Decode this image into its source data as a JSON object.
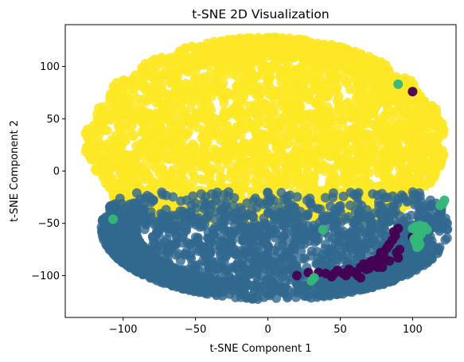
{
  "chart_data": {
    "type": "scatter",
    "title": "t-SNE 2D Visualization",
    "xlabel": "t-SNE Component 1",
    "ylabel": "t-SNE Component 2",
    "xlim": [
      -140,
      130
    ],
    "ylim": [
      -140,
      140
    ],
    "xticks": [
      -100,
      -50,
      0,
      50,
      100
    ],
    "yticks": [
      -100,
      -50,
      0,
      50,
      100
    ],
    "tick_labels_x": [
      "−100",
      "−50",
      "0",
      "50",
      "100"
    ],
    "tick_labels_y": [
      "−100",
      "−50",
      "0",
      "50",
      "100"
    ],
    "grid": false,
    "legend": "none",
    "colors": {
      "yellow": "#fde725",
      "blue": "#31688e",
      "green": "#35b779",
      "purple": "#440154"
    },
    "clusters": [
      {
        "color": "yellow",
        "region": "ellipse",
        "center": [
          -2,
          28
        ],
        "radius": [
          122,
          98
        ],
        "y_min": -48,
        "approx_extent": {
          "x": [
            -125,
            120
          ],
          "y": [
            -50,
            126
          ]
        }
      },
      {
        "color": "blue",
        "region": "ellipse-lower",
        "center": [
          5,
          -55
        ],
        "radius": [
          120,
          68
        ],
        "y_max": -20,
        "approx_extent": {
          "x": [
            -110,
            122
          ],
          "y": [
            -125,
            -20
          ]
        }
      },
      {
        "color": "purple",
        "points": [
          [
            90,
            -55
          ],
          [
            88,
            -62
          ],
          [
            84,
            -70
          ],
          [
            80,
            -78
          ],
          [
            76,
            -84
          ],
          [
            70,
            -88
          ],
          [
            64,
            -92
          ],
          [
            58,
            -96
          ],
          [
            52,
            -98
          ],
          [
            46,
            -98
          ],
          [
            40,
            -98
          ],
          [
            35,
            -97
          ],
          [
            28,
            -97
          ],
          [
            74,
            -90
          ],
          [
            68,
            -94
          ],
          [
            60,
            -97
          ],
          [
            86,
            -66
          ],
          [
            78,
            -86
          ],
          [
            70,
            -93
          ],
          [
            80,
            -82
          ],
          [
            79,
            -92
          ],
          [
            84,
            -86
          ],
          [
            62,
            -100
          ],
          [
            54,
            -100
          ],
          [
            44,
            -101
          ],
          [
            48,
            -95
          ],
          [
            56,
            -94
          ],
          [
            66,
            -89
          ],
          [
            72,
            -86
          ],
          [
            82,
            -74
          ],
          [
            87,
            -58
          ],
          [
            78,
            -80
          ],
          [
            83,
            -72
          ],
          [
            20,
            -100
          ],
          [
            100,
            -63
          ],
          [
            90,
            -83
          ],
          [
            100,
            76
          ],
          [
            78,
            -78
          ],
          [
            91,
            -75
          ],
          [
            89,
            -78
          ],
          [
            76,
            -92
          ],
          [
            64,
            -102
          ]
        ]
      },
      {
        "color": "green",
        "points": [
          [
            100,
            -55
          ],
          [
            102,
            -53
          ],
          [
            105,
            -52
          ],
          [
            108,
            -53
          ],
          [
            110,
            -56
          ],
          [
            104,
            -58
          ],
          [
            103,
            -62
          ],
          [
            104,
            -66
          ],
          [
            105,
            -70
          ],
          [
            103,
            -73
          ],
          [
            102,
            -68
          ],
          [
            106,
            -60
          ],
          [
            121,
            -31
          ],
          [
            119,
            -33
          ],
          [
            122,
            -28
          ],
          [
            30,
            -105
          ],
          [
            32,
            -102
          ],
          [
            90,
            83
          ],
          [
            -107,
            -46
          ],
          [
            38,
            -56
          ],
          [
            101,
            -65
          ],
          [
            104,
            -72
          ]
        ]
      }
    ]
  }
}
